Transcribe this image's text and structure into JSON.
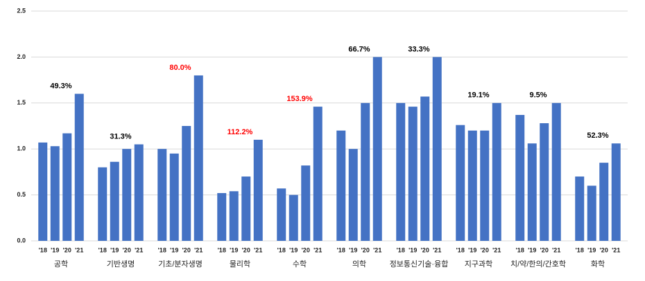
{
  "chart_data": {
    "type": "bar",
    "categories": [
      "공학",
      "기반생명",
      "기초/분자생명",
      "물리학",
      "수학",
      "의학",
      "정보통신기술·융합",
      "지구과학",
      "치/약/한의/간호학",
      "화학"
    ],
    "series": [
      {
        "name": "'18",
        "color": "#4472c4",
        "values": [
          1.07,
          0.8,
          1.0,
          0.52,
          0.57,
          1.2,
          1.5,
          1.26,
          1.37,
          0.7
        ]
      },
      {
        "name": "'19",
        "color": "#4472c4",
        "values": [
          1.03,
          0.86,
          0.95,
          0.54,
          0.5,
          1.0,
          1.46,
          1.2,
          1.06,
          0.6
        ]
      },
      {
        "name": "'20",
        "color": "#4472c4",
        "values": [
          1.17,
          1.0,
          1.25,
          0.7,
          0.82,
          1.5,
          1.57,
          1.2,
          1.28,
          0.85
        ]
      },
      {
        "name": "'21",
        "color": "#4472c4",
        "values": [
          1.6,
          1.05,
          1.8,
          1.1,
          1.46,
          2.0,
          2.0,
          1.5,
          1.5,
          1.06
        ]
      }
    ],
    "annotations": [
      {
        "text": "49.3%",
        "color": "#000000"
      },
      {
        "text": "31.3%",
        "color": "#000000"
      },
      {
        "text": "80.0%",
        "color": "#ff0000"
      },
      {
        "text": "112.2%",
        "color": "#ff0000"
      },
      {
        "text": "153.9%",
        "color": "#ff0000"
      },
      {
        "text": "66.7%",
        "color": "#000000"
      },
      {
        "text": "33.3%",
        "color": "#000000"
      },
      {
        "text": "19.1%",
        "color": "#000000"
      },
      {
        "text": "9.5%",
        "color": "#000000"
      },
      {
        "text": "52.3%",
        "color": "#000000"
      }
    ],
    "ylim": [
      0,
      2.5
    ],
    "yticks": [
      {
        "value": 0,
        "label": "0.0"
      },
      {
        "value": 0.5,
        "label": "0.5"
      },
      {
        "value": 1,
        "label": "1.0"
      },
      {
        "value": 1.5,
        "label": "1.5"
      },
      {
        "value": 2,
        "label": "2.0"
      },
      {
        "value": 2.5,
        "label": "2.5"
      }
    ],
    "grid": true
  }
}
